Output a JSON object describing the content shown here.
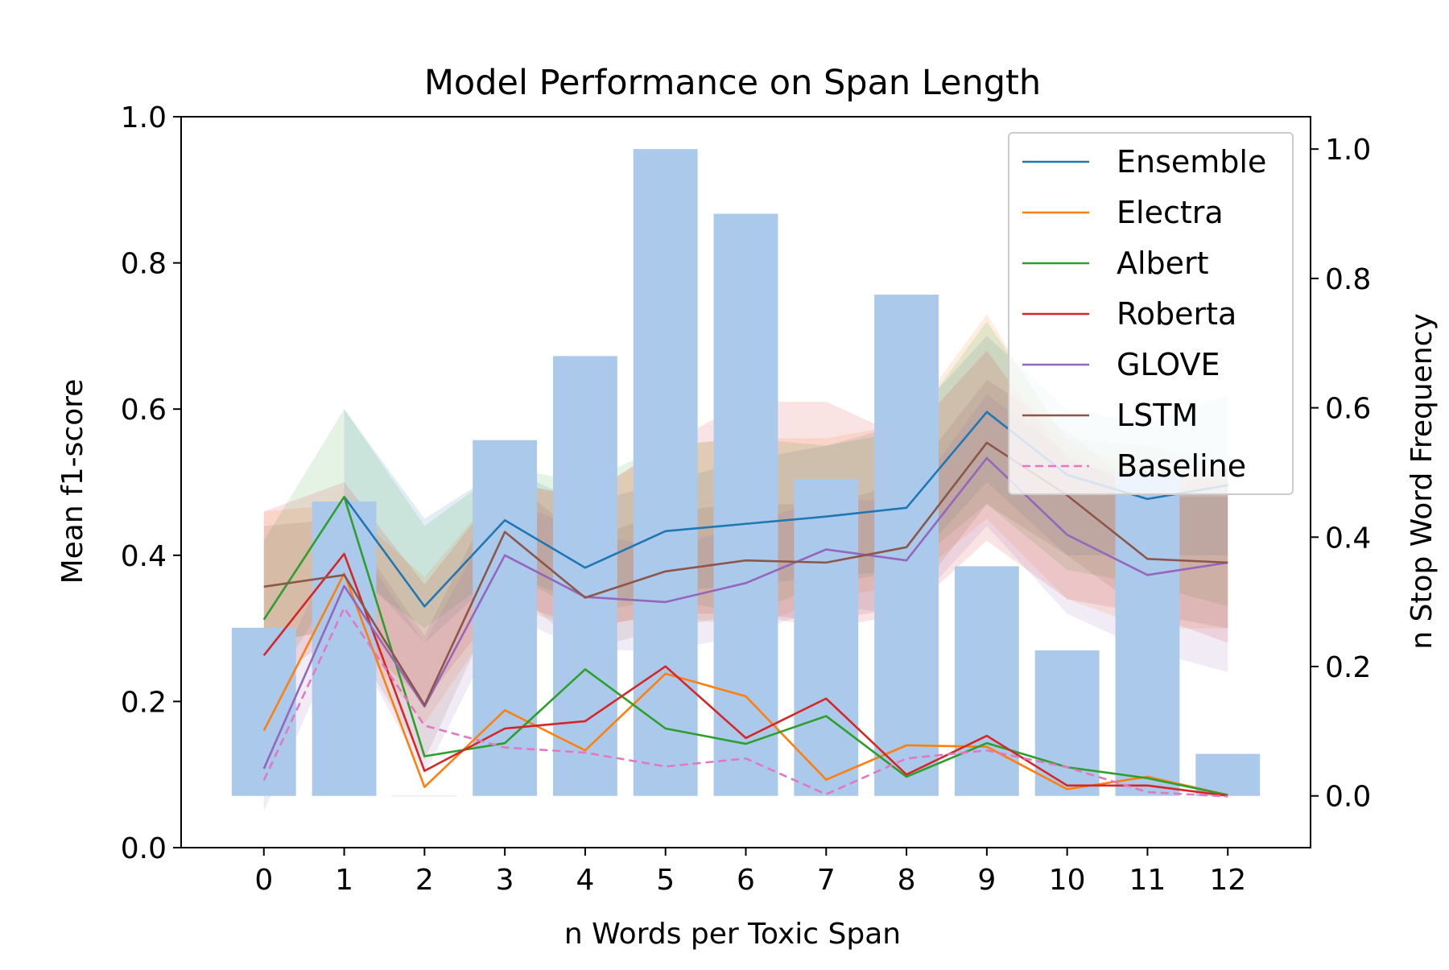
{
  "chart_data": {
    "type": "line",
    "title": "Model Performance on Span Length",
    "xlabel": "n Words per Toxic Span",
    "ylabel": "Mean f1-score",
    "y2label": "n Stop Word Frequency",
    "x": [
      0,
      1,
      2,
      3,
      4,
      5,
      6,
      7,
      8,
      9,
      10,
      11,
      12
    ],
    "x_tick_labels": [
      "0",
      "1",
      "2",
      "3",
      "4",
      "5",
      "6",
      "7",
      "8",
      "9",
      "10",
      "11",
      "12"
    ],
    "ylim": [
      0,
      1.0
    ],
    "yticks": [
      0.0,
      0.2,
      0.4,
      0.6,
      0.8,
      1.0
    ],
    "ytick_labels": [
      "0.0",
      "0.2",
      "0.4",
      "0.6",
      "0.8",
      "1.0"
    ],
    "y2lim": [
      -0.08,
      1.05
    ],
    "y2ticks": [
      0.0,
      0.2,
      0.4,
      0.6,
      0.8,
      1.0
    ],
    "y2tick_labels": [
      "0.0",
      "0.2",
      "0.4",
      "0.6",
      "0.8",
      "1.0"
    ],
    "grid": false,
    "legend_position": "top-right",
    "bars": {
      "axis": "right",
      "color": "#abc9ea",
      "values": [
        0.26,
        0.455,
        0.0,
        0.55,
        0.68,
        1.0,
        0.9,
        0.49,
        0.775,
        0.355,
        0.225,
        0.5,
        0.065
      ]
    },
    "series": [
      {
        "name": "Ensemble",
        "color": "#1f77b4",
        "dashed": false,
        "values": [
          null,
          0.48,
          0.33,
          0.448,
          0.383,
          0.433,
          0.443,
          0.453,
          0.465,
          0.596,
          0.51,
          0.477,
          0.496
        ],
        "band": [
          null,
          [
            0.4,
            0.6
          ],
          [
            0.28,
            0.45
          ],
          [
            0.38,
            0.52
          ],
          [
            0.33,
            0.47
          ],
          [
            0.35,
            0.5
          ],
          [
            0.36,
            0.53
          ],
          [
            0.37,
            0.55
          ],
          [
            0.38,
            0.58
          ],
          [
            0.5,
            0.7
          ],
          [
            0.4,
            0.6
          ],
          [
            0.4,
            0.58
          ],
          [
            0.4,
            0.62
          ]
        ]
      },
      {
        "name": "Electra",
        "color": "#ff7f0e",
        "dashed": false,
        "values": [
          0.16,
          0.375,
          0.083,
          0.188,
          0.133,
          0.238,
          0.207,
          0.093,
          0.14,
          0.138,
          0.08,
          0.097,
          0.072
        ],
        "band": [
          [
            0.28,
            0.46
          ],
          [
            0.3,
            0.47
          ],
          [
            0.17,
            0.37
          ],
          [
            0.33,
            0.5
          ],
          [
            0.3,
            0.48
          ],
          [
            0.32,
            0.55
          ],
          [
            0.3,
            0.56
          ],
          [
            0.34,
            0.56
          ],
          [
            0.36,
            0.58
          ],
          [
            0.45,
            0.73
          ],
          [
            0.34,
            0.55
          ],
          [
            0.3,
            0.52
          ],
          [
            0.3,
            0.5
          ]
        ]
      },
      {
        "name": "Albert",
        "color": "#2ca02c",
        "dashed": false,
        "values": [
          0.312,
          0.48,
          0.125,
          0.143,
          0.244,
          0.163,
          0.142,
          0.18,
          0.097,
          0.143,
          0.11,
          0.095,
          0.072
        ],
        "band": [
          [
            0.2,
            0.42
          ],
          [
            0.38,
            0.6
          ],
          [
            0.3,
            0.44
          ],
          [
            0.38,
            0.52
          ],
          [
            0.32,
            0.5
          ],
          [
            0.34,
            0.55
          ],
          [
            0.32,
            0.56
          ],
          [
            0.36,
            0.55
          ],
          [
            0.38,
            0.57
          ],
          [
            0.47,
            0.72
          ],
          [
            0.38,
            0.56
          ],
          [
            0.36,
            0.55
          ],
          [
            0.33,
            0.52
          ]
        ]
      },
      {
        "name": "Roberta",
        "color": "#d62728",
        "dashed": false,
        "values": [
          0.263,
          0.402,
          0.105,
          0.163,
          0.173,
          0.248,
          0.15,
          0.204,
          0.1,
          0.153,
          0.085,
          0.085,
          0.071
        ],
        "band": [
          [
            0.22,
            0.46
          ],
          [
            0.3,
            0.5
          ],
          [
            0.2,
            0.36
          ],
          [
            0.34,
            0.5
          ],
          [
            0.3,
            0.48
          ],
          [
            0.32,
            0.55
          ],
          [
            0.32,
            0.61
          ],
          [
            0.3,
            0.61
          ],
          [
            0.32,
            0.56
          ],
          [
            0.42,
            0.68
          ],
          [
            0.34,
            0.53
          ],
          [
            0.32,
            0.5
          ],
          [
            0.28,
            0.52
          ]
        ]
      },
      {
        "name": "GLOVE",
        "color": "#9467bd",
        "dashed": false,
        "values": [
          0.108,
          0.358,
          0.193,
          0.4,
          0.343,
          0.336,
          0.362,
          0.408,
          0.393,
          0.533,
          0.428,
          0.373,
          0.39
        ],
        "band": [
          [
            0.05,
            0.2
          ],
          [
            0.3,
            0.44
          ],
          [
            0.1,
            0.28
          ],
          [
            0.32,
            0.48
          ],
          [
            0.27,
            0.43
          ],
          [
            0.27,
            0.41
          ],
          [
            0.29,
            0.44
          ],
          [
            0.33,
            0.48
          ],
          [
            0.32,
            0.47
          ],
          [
            0.44,
            0.62
          ],
          [
            0.32,
            0.54
          ],
          [
            0.27,
            0.48
          ],
          [
            0.24,
            0.52
          ]
        ]
      },
      {
        "name": "LSTM",
        "color": "#8c564b",
        "dashed": false,
        "values": [
          0.357,
          0.373,
          0.195,
          0.432,
          0.342,
          0.378,
          0.393,
          0.39,
          0.411,
          0.554,
          0.482,
          0.395,
          0.39
        ],
        "band": [
          [
            0.28,
            0.44
          ],
          [
            0.3,
            0.45
          ],
          [
            0.12,
            0.29
          ],
          [
            0.36,
            0.51
          ],
          [
            0.27,
            0.42
          ],
          [
            0.3,
            0.46
          ],
          [
            0.32,
            0.47
          ],
          [
            0.31,
            0.47
          ],
          [
            0.33,
            0.5
          ],
          [
            0.47,
            0.64
          ],
          [
            0.4,
            0.57
          ],
          [
            0.32,
            0.48
          ],
          [
            0.3,
            0.48
          ]
        ]
      },
      {
        "name": "Baseline",
        "color": "#e377c2",
        "dashed": true,
        "values": [
          0.092,
          0.328,
          0.167,
          0.137,
          0.13,
          0.111,
          0.122,
          0.073,
          0.122,
          0.133,
          0.11,
          0.076,
          0.07
        ],
        "band": null
      }
    ]
  }
}
